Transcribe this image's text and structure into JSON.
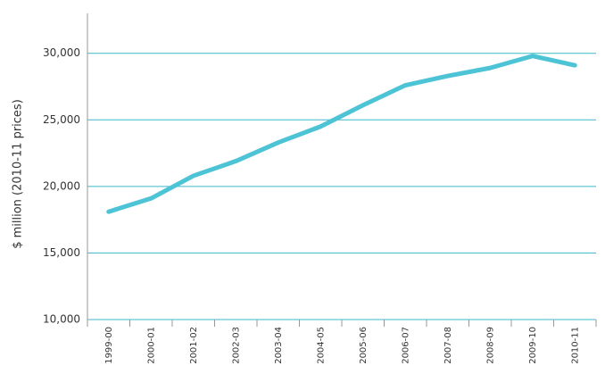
{
  "chart_data": {
    "type": "line",
    "y_label": "$ million (2010-11 prices)",
    "categories": [
      "1999-00",
      "2000-01",
      "2001-02",
      "2002-03",
      "2003-04",
      "2004-05",
      "2005-06",
      "2006-07",
      "2007-08",
      "2008-09",
      "2009-10",
      "2010-11"
    ],
    "values": [
      18100,
      19100,
      20800,
      21900,
      23300,
      24500,
      26100,
      27600,
      28300,
      28900,
      29800,
      29100
    ],
    "color": "#4dc3d6",
    "ylim": [
      10000,
      33000
    ],
    "yticks": [
      {
        "value": 10000,
        "label": "10,000"
      },
      {
        "value": 15000,
        "label": "15,000"
      },
      {
        "value": 20000,
        "label": "20,000"
      },
      {
        "value": 25000,
        "label": "25,000"
      },
      {
        "value": 30000,
        "label": "30,000"
      }
    ],
    "grid": true
  }
}
